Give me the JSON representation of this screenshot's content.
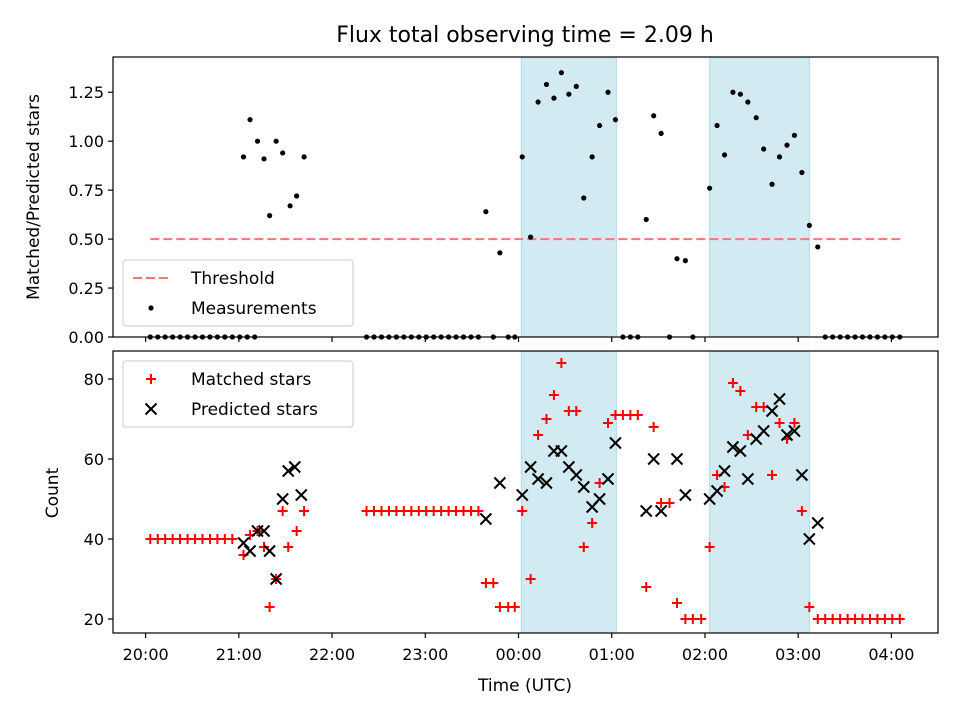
{
  "chart_data": [
    {
      "type": "scatter",
      "title": "Flux total observing time = 2.09 h",
      "ylabel": "Matched/Predicted stars",
      "xlabel": "",
      "x_unit": "hours from 00:00 UTC",
      "xlim": [
        -4.35,
        4.5
      ],
      "ylim": [
        0,
        1.43
      ],
      "x_ticks": [
        -4,
        -3,
        -2,
        -1,
        0,
        1,
        2,
        3,
        4
      ],
      "x_tick_labels": [
        "20:00",
        "21:00",
        "22:00",
        "23:00",
        "00:00",
        "01:00",
        "02:00",
        "03:00",
        "04:00"
      ],
      "y_ticks": [
        0,
        0.25,
        0.5,
        0.75,
        1.0,
        1.25
      ],
      "y_tick_labels": [
        "0.00",
        "0.25",
        "0.50",
        "0.75",
        "1.00",
        "1.25"
      ],
      "shaded_spans": [
        [
          0.03,
          1.05
        ],
        [
          2.05,
          3.12
        ]
      ],
      "shade_color": "#add8e6",
      "threshold": {
        "name": "Threshold",
        "y": 0.5,
        "x": [
          -3.95,
          4.1
        ],
        "color": "#ff7575",
        "style": "dashed"
      },
      "legend": {
        "position": "lower-left",
        "entries": [
          "Threshold",
          "Measurements"
        ]
      },
      "series": [
        {
          "name": "Measurements",
          "color": "#000000",
          "marker": "dot",
          "points": [
            [
              -3.95,
              0
            ],
            [
              -3.87,
              0
            ],
            [
              -3.79,
              0
            ],
            [
              -3.71,
              0
            ],
            [
              -3.63,
              0
            ],
            [
              -3.55,
              0
            ],
            [
              -3.47,
              0
            ],
            [
              -3.39,
              0
            ],
            [
              -3.31,
              0
            ],
            [
              -3.23,
              0
            ],
            [
              -3.15,
              0
            ],
            [
              -3.07,
              0
            ],
            [
              -2.99,
              0
            ],
            [
              -2.91,
              0
            ],
            [
              -2.83,
              0
            ],
            [
              -2.95,
              0.92
            ],
            [
              -2.88,
              1.11
            ],
            [
              -2.8,
              1.0
            ],
            [
              -2.73,
              0.91
            ],
            [
              -2.67,
              0.62
            ],
            [
              -2.6,
              1.0
            ],
            [
              -2.53,
              0.94
            ],
            [
              -2.45,
              0.67
            ],
            [
              -2.38,
              0.72
            ],
            [
              -2.3,
              0.92
            ],
            [
              -1.63,
              0
            ],
            [
              -1.55,
              0
            ],
            [
              -1.47,
              0
            ],
            [
              -1.39,
              0
            ],
            [
              -1.31,
              0
            ],
            [
              -1.23,
              0
            ],
            [
              -1.15,
              0
            ],
            [
              -1.07,
              0
            ],
            [
              -0.99,
              0
            ],
            [
              -0.91,
              0
            ],
            [
              -0.83,
              0
            ],
            [
              -0.75,
              0
            ],
            [
              -0.67,
              0
            ],
            [
              -0.59,
              0
            ],
            [
              -0.51,
              0
            ],
            [
              -0.43,
              0
            ],
            [
              -0.35,
              0.64
            ],
            [
              -0.27,
              0
            ],
            [
              -0.2,
              0.43
            ],
            [
              -0.11,
              0
            ],
            [
              -0.04,
              0
            ],
            [
              0.04,
              0.92
            ],
            [
              0.13,
              0.51
            ],
            [
              0.21,
              1.2
            ],
            [
              0.3,
              1.29
            ],
            [
              0.38,
              1.22
            ],
            [
              0.46,
              1.35
            ],
            [
              0.54,
              1.24
            ],
            [
              0.62,
              1.28
            ],
            [
              0.7,
              0.71
            ],
            [
              0.79,
              0.92
            ],
            [
              0.87,
              1.08
            ],
            [
              0.96,
              1.25
            ],
            [
              1.04,
              1.11
            ],
            [
              1.12,
              0
            ],
            [
              1.2,
              0
            ],
            [
              1.28,
              0
            ],
            [
              1.37,
              0.6
            ],
            [
              1.45,
              1.13
            ],
            [
              1.53,
              1.04
            ],
            [
              1.62,
              0
            ],
            [
              1.7,
              0.4
            ],
            [
              1.79,
              0.39
            ],
            [
              1.87,
              0
            ],
            [
              2.05,
              0.76
            ],
            [
              2.13,
              1.08
            ],
            [
              2.21,
              0.93
            ],
            [
              2.3,
              1.25
            ],
            [
              2.38,
              1.24
            ],
            [
              2.46,
              1.2
            ],
            [
              2.55,
              1.12
            ],
            [
              2.63,
              0.96
            ],
            [
              2.72,
              0.78
            ],
            [
              2.8,
              0.92
            ],
            [
              2.88,
              0.98
            ],
            [
              2.96,
              1.03
            ],
            [
              3.04,
              0.84
            ],
            [
              3.12,
              0.57
            ],
            [
              3.21,
              0.46
            ],
            [
              3.29,
              0
            ],
            [
              3.37,
              0
            ],
            [
              3.45,
              0
            ],
            [
              3.53,
              0
            ],
            [
              3.61,
              0
            ],
            [
              3.69,
              0
            ],
            [
              3.77,
              0
            ],
            [
              3.85,
              0
            ],
            [
              3.93,
              0
            ],
            [
              4.01,
              0
            ],
            [
              4.09,
              0
            ]
          ]
        }
      ]
    },
    {
      "type": "scatter",
      "title": "",
      "xlabel": "Time (UTC)",
      "ylabel": "Count",
      "xlim": [
        -4.35,
        4.5
      ],
      "ylim": [
        16.5,
        87
      ],
      "x_ticks": [
        -4,
        -3,
        -2,
        -1,
        0,
        1,
        2,
        3,
        4
      ],
      "x_tick_labels": [
        "20:00",
        "21:00",
        "22:00",
        "23:00",
        "00:00",
        "01:00",
        "02:00",
        "03:00",
        "04:00"
      ],
      "y_ticks": [
        20,
        40,
        60,
        80
      ],
      "y_tick_labels": [
        "20",
        "40",
        "60",
        "80"
      ],
      "shaded_spans": [
        [
          0.03,
          1.05
        ],
        [
          2.05,
          3.12
        ]
      ],
      "shade_color": "#add8e6",
      "legend": {
        "position": "upper-left",
        "entries": [
          "Matched stars",
          "Predicted stars"
        ]
      },
      "series": [
        {
          "name": "Matched stars",
          "color": "#ff0000",
          "marker": "plus",
          "points": [
            [
              -3.95,
              40
            ],
            [
              -3.87,
              40
            ],
            [
              -3.79,
              40
            ],
            [
              -3.71,
              40
            ],
            [
              -3.63,
              40
            ],
            [
              -3.55,
              40
            ],
            [
              -3.47,
              40
            ],
            [
              -3.39,
              40
            ],
            [
              -3.31,
              40
            ],
            [
              -3.23,
              40
            ],
            [
              -3.15,
              40
            ],
            [
              -3.07,
              40
            ],
            [
              -2.95,
              36
            ],
            [
              -2.88,
              41
            ],
            [
              -2.8,
              42
            ],
            [
              -2.73,
              38
            ],
            [
              -2.67,
              23
            ],
            [
              -2.6,
              30
            ],
            [
              -2.53,
              47
            ],
            [
              -2.47,
              38
            ],
            [
              -2.38,
              42
            ],
            [
              -2.3,
              47
            ],
            [
              -1.63,
              47
            ],
            [
              -1.55,
              47
            ],
            [
              -1.47,
              47
            ],
            [
              -1.39,
              47
            ],
            [
              -1.31,
              47
            ],
            [
              -1.23,
              47
            ],
            [
              -1.15,
              47
            ],
            [
              -1.07,
              47
            ],
            [
              -0.99,
              47
            ],
            [
              -0.91,
              47
            ],
            [
              -0.83,
              47
            ],
            [
              -0.75,
              47
            ],
            [
              -0.67,
              47
            ],
            [
              -0.59,
              47
            ],
            [
              -0.51,
              47
            ],
            [
              -0.43,
              47
            ],
            [
              -0.35,
              29
            ],
            [
              -0.27,
              29
            ],
            [
              -0.2,
              23
            ],
            [
              -0.11,
              23
            ],
            [
              -0.04,
              23
            ],
            [
              0.04,
              47
            ],
            [
              0.13,
              30
            ],
            [
              0.21,
              66
            ],
            [
              0.3,
              70
            ],
            [
              0.38,
              76
            ],
            [
              0.46,
              84
            ],
            [
              0.54,
              72
            ],
            [
              0.62,
              72
            ],
            [
              0.7,
              38
            ],
            [
              0.79,
              44
            ],
            [
              0.87,
              54
            ],
            [
              0.96,
              69
            ],
            [
              1.04,
              71
            ],
            [
              1.12,
              71
            ],
            [
              1.2,
              71
            ],
            [
              1.28,
              71
            ],
            [
              1.37,
              28
            ],
            [
              1.45,
              68
            ],
            [
              1.53,
              49
            ],
            [
              1.62,
              49
            ],
            [
              1.7,
              24
            ],
            [
              1.79,
              20
            ],
            [
              1.87,
              20
            ],
            [
              1.96,
              20
            ],
            [
              2.05,
              38
            ],
            [
              2.13,
              56
            ],
            [
              2.21,
              53
            ],
            [
              2.3,
              79
            ],
            [
              2.38,
              77
            ],
            [
              2.46,
              66
            ],
            [
              2.55,
              73
            ],
            [
              2.63,
              73
            ],
            [
              2.72,
              56
            ],
            [
              2.8,
              69
            ],
            [
              2.88,
              65
            ],
            [
              2.96,
              69
            ],
            [
              3.04,
              47
            ],
            [
              3.12,
              23
            ],
            [
              3.21,
              20
            ],
            [
              3.29,
              20
            ],
            [
              3.37,
              20
            ],
            [
              3.45,
              20
            ],
            [
              3.53,
              20
            ],
            [
              3.61,
              20
            ],
            [
              3.69,
              20
            ],
            [
              3.77,
              20
            ],
            [
              3.85,
              20
            ],
            [
              3.93,
              20
            ],
            [
              4.01,
              20
            ],
            [
              4.09,
              20
            ]
          ]
        },
        {
          "name": "Predicted stars",
          "color": "#000000",
          "marker": "x",
          "points": [
            [
              -2.95,
              39
            ],
            [
              -2.88,
              37
            ],
            [
              -2.8,
              42
            ],
            [
              -2.73,
              42
            ],
            [
              -2.67,
              37
            ],
            [
              -2.6,
              30
            ],
            [
              -2.53,
              50
            ],
            [
              -2.47,
              57
            ],
            [
              -2.4,
              58
            ],
            [
              -2.33,
              51
            ],
            [
              -0.35,
              45
            ],
            [
              -0.2,
              54
            ],
            [
              0.04,
              51
            ],
            [
              0.13,
              58
            ],
            [
              0.21,
              55
            ],
            [
              0.3,
              54
            ],
            [
              0.38,
              62
            ],
            [
              0.46,
              62
            ],
            [
              0.54,
              58
            ],
            [
              0.62,
              56
            ],
            [
              0.7,
              53
            ],
            [
              0.79,
              48
            ],
            [
              0.87,
              50
            ],
            [
              0.96,
              55
            ],
            [
              1.04,
              64
            ],
            [
              1.37,
              47
            ],
            [
              1.45,
              60
            ],
            [
              1.53,
              47
            ],
            [
              1.7,
              60
            ],
            [
              1.79,
              51
            ],
            [
              2.05,
              50
            ],
            [
              2.13,
              52
            ],
            [
              2.21,
              57
            ],
            [
              2.3,
              63
            ],
            [
              2.38,
              62
            ],
            [
              2.46,
              55
            ],
            [
              2.55,
              65
            ],
            [
              2.63,
              67
            ],
            [
              2.72,
              72
            ],
            [
              2.8,
              75
            ],
            [
              2.88,
              66
            ],
            [
              2.96,
              67
            ],
            [
              3.04,
              56
            ],
            [
              3.12,
              40
            ],
            [
              3.21,
              44
            ]
          ]
        }
      ]
    }
  ]
}
